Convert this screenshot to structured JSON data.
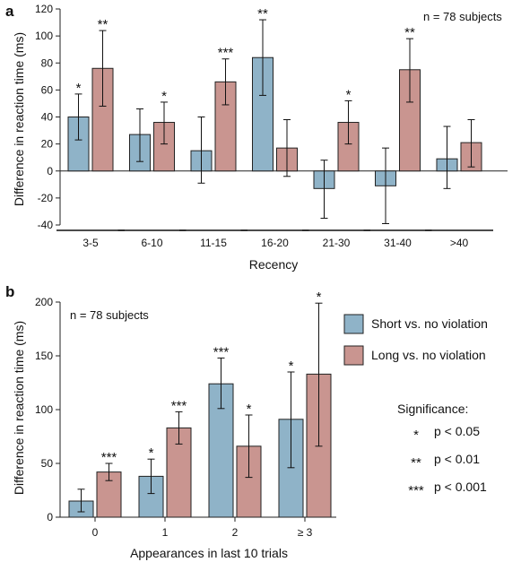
{
  "colors": {
    "short": "#8fb3c8",
    "long": "#c99590",
    "stroke": "#222222"
  },
  "legend": {
    "short_label": "Short vs. no violation",
    "long_label": "Long vs. no violation",
    "significance_title": "Significance:",
    "levels": [
      {
        "stars": "*",
        "text": "p < 0.05"
      },
      {
        "stars": "**",
        "text": "p < 0.01"
      },
      {
        "stars": "***",
        "text": "p < 0.001"
      }
    ]
  },
  "chart_data": [
    {
      "panel": "a",
      "type": "bar",
      "note": "n = 78 subjects",
      "xlabel": "Recency",
      "ylabel": "Difference in reaction time (ms)",
      "ylim": [
        -40,
        120
      ],
      "yticks": [
        "-40",
        "-20",
        "0",
        "20",
        "40",
        "60",
        "80",
        "100",
        "120"
      ],
      "categories": [
        "3-5",
        "6-10",
        "11-15",
        "16-20",
        "21-30",
        "31-40",
        ">40"
      ],
      "series": [
        {
          "key": "short",
          "values": [
            40,
            27,
            15,
            84,
            -13,
            -11,
            9
          ],
          "err_low": [
            23,
            7,
            -9,
            56,
            -35,
            -39,
            -13
          ],
          "err_high": [
            57,
            46,
            40,
            112,
            8,
            17,
            33
          ],
          "sig": [
            "*",
            "",
            "",
            "**",
            "",
            "",
            ""
          ]
        },
        {
          "key": "long",
          "values": [
            76,
            36,
            66,
            17,
            36,
            75,
            21
          ],
          "err_low": [
            48,
            20,
            49,
            -4,
            20,
            51,
            3
          ],
          "err_high": [
            104,
            51,
            83,
            38,
            52,
            98,
            38
          ],
          "sig": [
            "**",
            "*",
            "***",
            "",
            "*",
            "**",
            ""
          ]
        }
      ]
    },
    {
      "panel": "b",
      "type": "bar",
      "note": "n = 78 subjects",
      "xlabel": "Appearances in last 10 trials",
      "ylabel": "Difference in reaction time (ms)",
      "ylim": [
        0,
        200
      ],
      "yticks": [
        "0",
        "50",
        "100",
        "150",
        "200"
      ],
      "categories": [
        "0",
        "1",
        "2",
        "≥ 3"
      ],
      "series": [
        {
          "key": "short",
          "values": [
            15,
            38,
            124,
            91
          ],
          "err_low": [
            5,
            22,
            101,
            46
          ],
          "err_high": [
            26,
            54,
            148,
            135
          ],
          "sig": [
            "",
            "*",
            "***",
            "*"
          ]
        },
        {
          "key": "long",
          "values": [
            42,
            83,
            66,
            133
          ],
          "err_low": [
            34,
            68,
            37,
            66
          ],
          "err_high": [
            50,
            98,
            95,
            199
          ],
          "sig": [
            "***",
            "***",
            "*",
            "*"
          ]
        }
      ]
    }
  ]
}
